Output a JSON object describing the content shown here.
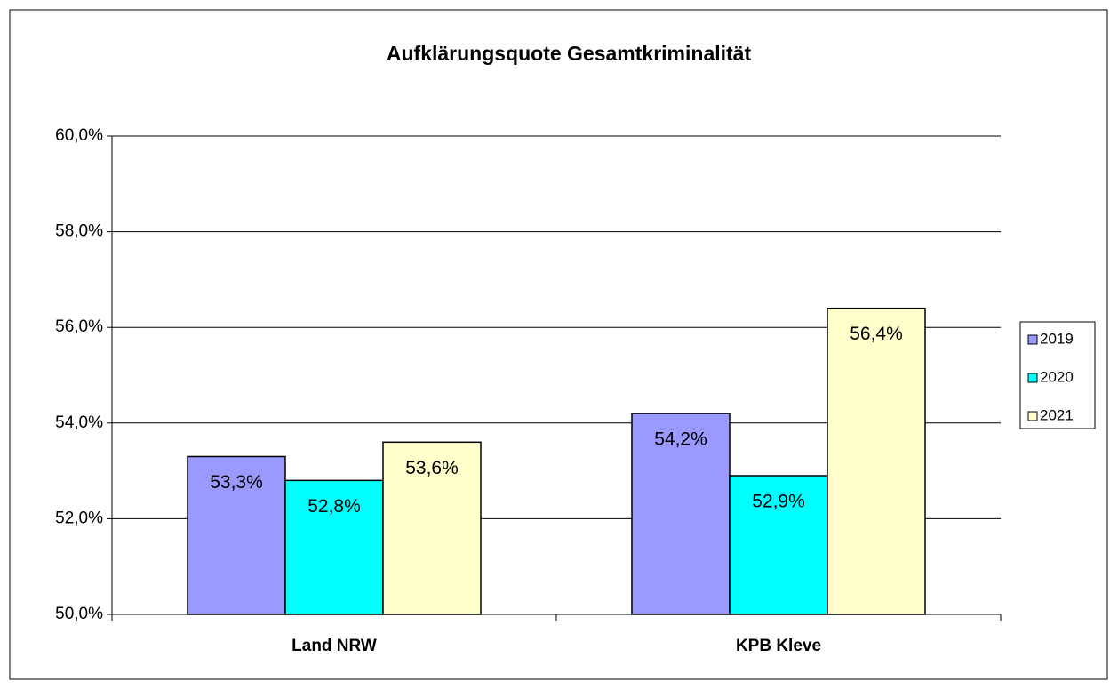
{
  "chart_data": {
    "type": "bar",
    "title": "Aufklärungsquote  Gesamtkriminalität",
    "categories": [
      "Land NRW",
      "KPB Kleve"
    ],
    "series": [
      {
        "name": "2019",
        "color": "#9999ff",
        "values": [
          53.3,
          54.2
        ],
        "value_labels": [
          "53,3%",
          "54,2%"
        ]
      },
      {
        "name": "2020",
        "color": "#00ffff",
        "values": [
          52.8,
          52.9
        ],
        "value_labels": [
          "52,8%",
          "52,9%"
        ]
      },
      {
        "name": "2021",
        "color": "#ffffcc",
        "values": [
          53.6,
          56.4
        ],
        "value_labels": [
          "53,6%",
          "56,4%"
        ]
      }
    ],
    "ylim": [
      50,
      60
    ],
    "yticks": [
      {
        "value": 50,
        "label": "50,0%"
      },
      {
        "value": 52,
        "label": "52,0%"
      },
      {
        "value": 54,
        "label": "54,0%"
      },
      {
        "value": 56,
        "label": "56,0%"
      },
      {
        "value": 58,
        "label": "58,0%"
      },
      {
        "value": 60,
        "label": "60,0%"
      }
    ],
    "grid": true,
    "legend": "right"
  }
}
